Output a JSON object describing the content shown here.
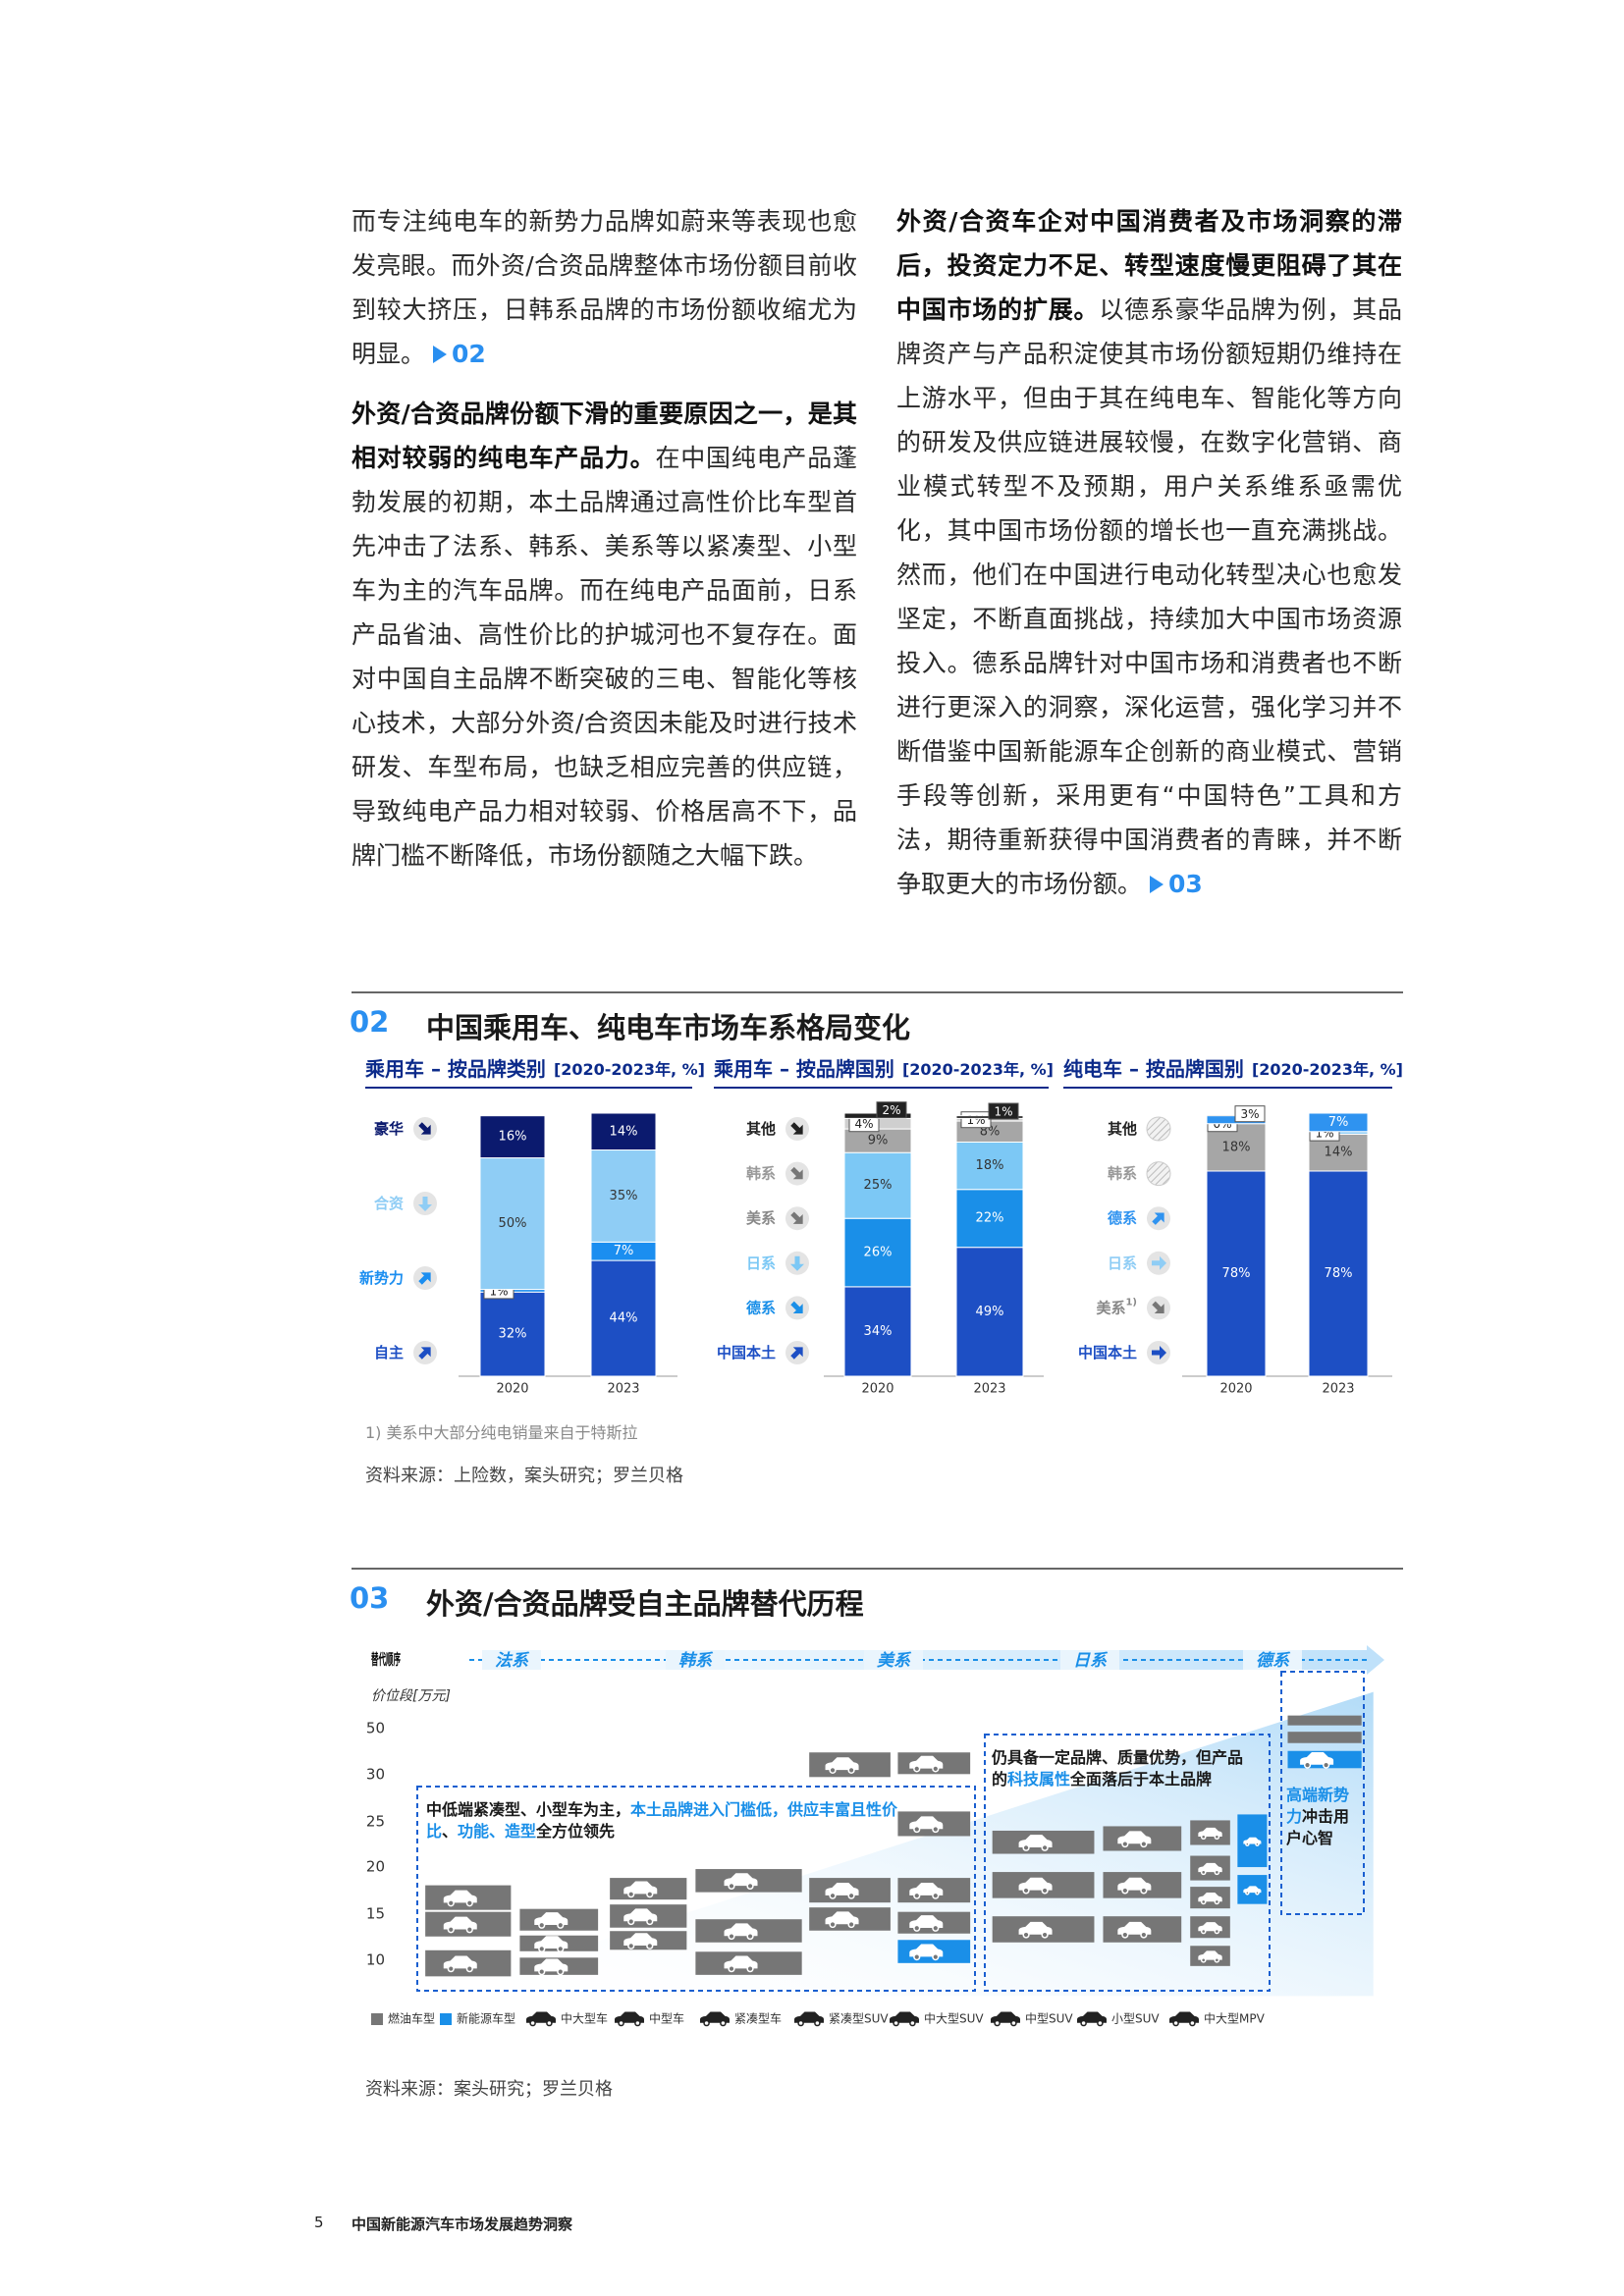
{
  "page": {
    "left_column": [
      {
        "text": "而专注纯电车的新势力品牌如蔚来等表现也愈发亮眼。而外资/合资品牌整体市场份额目前收到较大挤压，日韩系品牌的市场份额收缩尤为明显。",
        "ref": "02"
      },
      {
        "lead": "外资/合资品牌份额下滑的重要原因之一，是其相对较弱的纯电车产品力。",
        "text": "在中国纯电产品蓬勃发展的初期，本土品牌通过高性价比车型首先冲击了法系、韩系、美系等以紧凑型、小型车为主的汽车品牌。而在纯电产品面前，日系产品省油、高性价比的护城河也不复存在。面对中国自主品牌不断突破的三电、智能化等核心技术，大部分外资/合资因未能及时进行技术研发、车型布局，也缺乏相应完善的供应链，导致纯电产品力相对较弱、价格居高不下，品牌门槛不断降低，市场份额随之大幅下跌。"
      }
    ],
    "right_column": [
      {
        "lead": "外资/合资车企对中国消费者及市场洞察的滞后，投资定力不足、转型速度慢更阻碍了其在中国市场的扩展。",
        "text": "以德系豪华品牌为例，其品牌资产与产品积淀使其市场份额短期仍维持在上游水平，但由于其在纯电车、智能化等方向的研发及供应链进展较慢，在数字化营销、商业模式转型不及预期，用户关系维系亟需优化，其中国市场份额的增长也一直充满挑战。然而，他们在中国进行电动化转型决心也愈发坚定，不断直面挑战，持续加大中国市场资源投入。德系品牌针对中国市场和消费者也不断进行更深入的洞察，深化运营，强化学习并不断借鉴中国新能源车企创新的商业模式、营销手段等创新，采用更有“中国特色”工具和方法，期待重新获得中国消费者的青睐，并不断争取更大的市场份额。",
        "ref": "03"
      }
    ],
    "footer": {
      "page_number": "5",
      "title": "中国新能源汽车市场发展趋势洞察"
    }
  },
  "figure_02": {
    "number": "02",
    "title": "中国乘用车、纯电车市场车系格局变化",
    "footnote": "1) 美系中大部分纯电销量来自于特斯拉",
    "source": "资料来源：上险数，案头研究；罗兰贝格"
  },
  "chart_data": [
    {
      "type": "stacked_bar",
      "title": "乘用车 – 按品牌类别",
      "subtitle": "[2020-2023年, %]",
      "categories": [
        "2020",
        "2023"
      ],
      "ylim": [
        0,
        100
      ],
      "series": [
        {
          "name": "自主",
          "color": "#1d4fc4",
          "trend": "up-right",
          "values": [
            32,
            44
          ],
          "value_labels": [
            "32%",
            "44%"
          ]
        },
        {
          "name": "新势力",
          "color": "#1b8ef0",
          "trend": "up-right",
          "values": [
            1,
            7
          ],
          "value_labels": [
            "1%",
            "7%"
          ]
        },
        {
          "name": "合资",
          "color": "#8fcdf5",
          "trend": "down",
          "values": [
            50,
            35
          ],
          "value_labels": [
            "50%",
            "35%"
          ]
        },
        {
          "name": "豪华",
          "color": "#0b1a6e",
          "trend": "down-right",
          "values": [
            16,
            14
          ],
          "value_labels": [
            "16%",
            "14%"
          ]
        }
      ]
    },
    {
      "type": "stacked_bar",
      "title": "乘用车 – 按品牌国别",
      "subtitle": "[2020-2023年, %]",
      "categories": [
        "2020",
        "2023"
      ],
      "ylim": [
        0,
        100
      ],
      "series": [
        {
          "name": "中国本土",
          "color": "#1d4fc4",
          "trend": "up-right",
          "values": [
            34,
            49
          ],
          "value_labels": [
            "34%",
            "49%"
          ]
        },
        {
          "name": "德系",
          "color": "#1a8fe8",
          "trend": "down-right",
          "values": [
            26,
            22
          ],
          "value_labels": [
            "26%",
            "22%"
          ]
        },
        {
          "name": "日系",
          "color": "#7cc8f5",
          "trend": "down",
          "values": [
            25,
            18
          ],
          "value_labels": [
            "25%",
            "18%"
          ]
        },
        {
          "name": "美系",
          "color": "#a6a6a6",
          "trend": "down-right",
          "values": [
            9,
            8
          ],
          "value_labels": [
            "9%",
            "8%"
          ]
        },
        {
          "name": "韩系",
          "color": "#cfcfcf",
          "trend": "down-right",
          "values": [
            4,
            1
          ],
          "value_labels": [
            "4%",
            "1%"
          ]
        },
        {
          "name": "其他",
          "color": "#222222",
          "trend": "down-right",
          "values": [
            2,
            1
          ],
          "value_labels": [
            "2%",
            "1%"
          ]
        }
      ]
    },
    {
      "type": "stacked_bar",
      "title": "纯电车 – 按品牌国别",
      "subtitle": "[2020-2023年, %]",
      "categories": [
        "2020",
        "2023"
      ],
      "ylim": [
        0,
        100
      ],
      "series": [
        {
          "name": "中国本土",
          "color": "#1d4fc4",
          "trend": "right",
          "values": [
            78,
            78
          ],
          "value_labels": [
            "78%",
            "78%"
          ]
        },
        {
          "name": "美系",
          "note_marker": "1)",
          "color": "#a6a6a6",
          "trend": "down-right",
          "values": [
            18,
            14
          ],
          "value_labels": [
            "18%",
            "14%"
          ]
        },
        {
          "name": "日系",
          "color": "#8fcdf5",
          "trend": "right",
          "values": [
            0,
            1
          ],
          "value_labels": [
            "0%",
            "1%"
          ]
        },
        {
          "name": "德系",
          "color": "#2f93f0",
          "trend": "up-right",
          "values": [
            3,
            7
          ],
          "value_labels": [
            "3%",
            "7%"
          ]
        },
        {
          "name": "韩系",
          "color": "#cfcfcf",
          "trend": null,
          "values": [
            null,
            null
          ]
        },
        {
          "name": "其他",
          "color": "#222222",
          "trend": null,
          "values": [
            null,
            null
          ]
        }
      ]
    }
  ],
  "figure_03": {
    "number": "03",
    "title": "外资/合资品牌受自主品牌替代历程",
    "order_label": "替代顺序",
    "order": [
      "法系",
      "韩系",
      "美系",
      "日系",
      "德系"
    ],
    "price_axis_label": "价位段[万元]",
    "price_ticks": [
      "50",
      "30",
      "25",
      "20",
      "15",
      "10"
    ],
    "box_low": [
      {
        "text": "中低端紧凑型、小型车为主，"
      },
      {
        "text": "本土品牌进入门槛低，供应丰富且性价比",
        "color": "#1a8fe8"
      },
      {
        "text": "、"
      },
      {
        "text": "功能、造型",
        "color": "#1a8fe8"
      },
      {
        "text": "全方位领先"
      }
    ],
    "box_mid": [
      {
        "text": "仍具备一定品牌、质量优势，但产品的"
      },
      {
        "text": "科技属性",
        "color": "#1a8fe8"
      },
      {
        "text": "全面落后于本土品牌"
      }
    ],
    "box_high": [
      {
        "text": "高端新势力",
        "color": "#1a8fe8"
      },
      {
        "text": "冲击用户心智"
      }
    ],
    "legend": [
      "燃油车型",
      "新能源车型",
      "中大型车",
      "中型车",
      "紧凑型车",
      "紧凑型SUV",
      "中大型SUV",
      "中型SUV",
      "小型SUV",
      "中大型MPV"
    ],
    "legend_colors": [
      "#767676",
      "#1a8fe8"
    ],
    "source": "资料来源：案头研究；罗兰贝格"
  }
}
